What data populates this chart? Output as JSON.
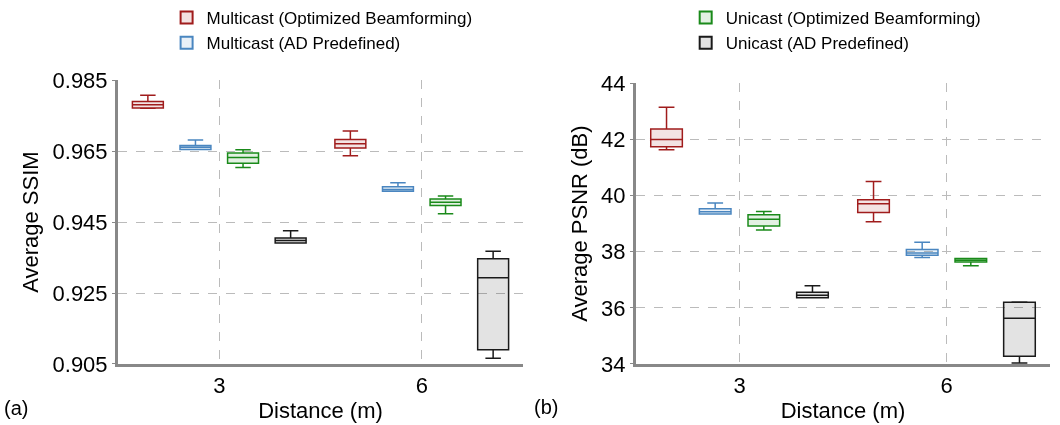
{
  "chart_data": [
    {
      "type": "box",
      "xlabel": "Distance (m)",
      "ylabel": "Average SSIM",
      "categories": [
        "3",
        "6"
      ],
      "ylim": [
        0.905,
        0.985
      ],
      "yticks": [
        0.905,
        0.925,
        0.945,
        0.965,
        0.985
      ],
      "grid": true,
      "legend": "top",
      "annotations": [
        "(a)"
      ],
      "series": [
        {
          "name": "Multicast (Optimized Beamforming)",
          "color": "#a01c1c",
          "boxes": [
            {
              "low": 0.9771,
              "q1": 0.9772,
              "median": 0.9781,
              "q3": 0.979,
              "high": 0.9808
            },
            {
              "low": 0.9637,
              "q1": 0.9659,
              "median": 0.9671,
              "q3": 0.9683,
              "high": 0.9707
            }
          ]
        },
        {
          "name": "Multicast (AD Predefined)",
          "color": "#4a86c0",
          "boxes": [
            {
              "low": 0.9655,
              "q1": 0.9655,
              "median": 0.9661,
              "q3": 0.9666,
              "high": 0.9682
            },
            {
              "low": 0.9537,
              "q1": 0.9537,
              "median": 0.9542,
              "q3": 0.955,
              "high": 0.9561
            }
          ]
        },
        {
          "color": "#1a8a1a",
          "boxes": [
            {
              "low": 0.9604,
              "q1": 0.9616,
              "median": 0.9632,
              "q3": 0.9645,
              "high": 0.9654
            },
            {
              "low": 0.9474,
              "q1": 0.9497,
              "median": 0.9506,
              "q3": 0.9515,
              "high": 0.9524
            }
          ]
        },
        {
          "color": "#1a1a1a",
          "boxes": [
            {
              "low": 0.9391,
              "q1": 0.9391,
              "median": 0.9398,
              "q3": 0.9405,
              "high": 0.9426
            },
            {
              "low": 0.9066,
              "q1": 0.909,
              "median": 0.9293,
              "q3": 0.9347,
              "high": 0.9368
            }
          ]
        }
      ]
    },
    {
      "type": "box",
      "xlabel": "Distance (m)",
      "ylabel": "Average PSNR (dB)",
      "categories": [
        "3",
        "6"
      ],
      "ylim": [
        34,
        44
      ],
      "yticks": [
        34,
        36,
        38,
        40,
        42,
        44
      ],
      "grid": true,
      "legend": "top",
      "annotations": [
        "(b)"
      ],
      "series": [
        {
          "color": "#a01c1c",
          "boxes": [
            {
              "low": 41.63,
              "q1": 41.74,
              "median": 42.0,
              "q3": 42.37,
              "high": 43.15
            },
            {
              "low": 39.07,
              "q1": 39.4,
              "median": 39.71,
              "q3": 39.85,
              "high": 40.5
            }
          ]
        },
        {
          "color": "#4a86c0",
          "boxes": [
            {
              "low": 39.34,
              "q1": 39.34,
              "median": 39.42,
              "q3": 39.53,
              "high": 39.74
            },
            {
              "low": 37.79,
              "q1": 37.87,
              "median": 37.95,
              "q3": 38.08,
              "high": 38.34
            }
          ]
        },
        {
          "name": "Unicast (Optimized Beamforming)",
          "color": "#1a8a1a",
          "boxes": [
            {
              "low": 38.77,
              "q1": 38.92,
              "median": 39.16,
              "q3": 39.32,
              "high": 39.43
            },
            {
              "low": 37.5,
              "q1": 37.63,
              "median": 37.7,
              "q3": 37.76,
              "high": 37.76
            }
          ]
        },
        {
          "name": "Unicast (AD Predefined)",
          "color": "#1a1a1a",
          "boxes": [
            {
              "low": 36.36,
              "q1": 36.36,
              "median": 36.45,
              "q3": 36.56,
              "high": 36.79
            },
            {
              "low": 34.04,
              "q1": 34.28,
              "median": 35.63,
              "q3": 36.2,
              "high": 36.21
            }
          ]
        }
      ]
    }
  ]
}
